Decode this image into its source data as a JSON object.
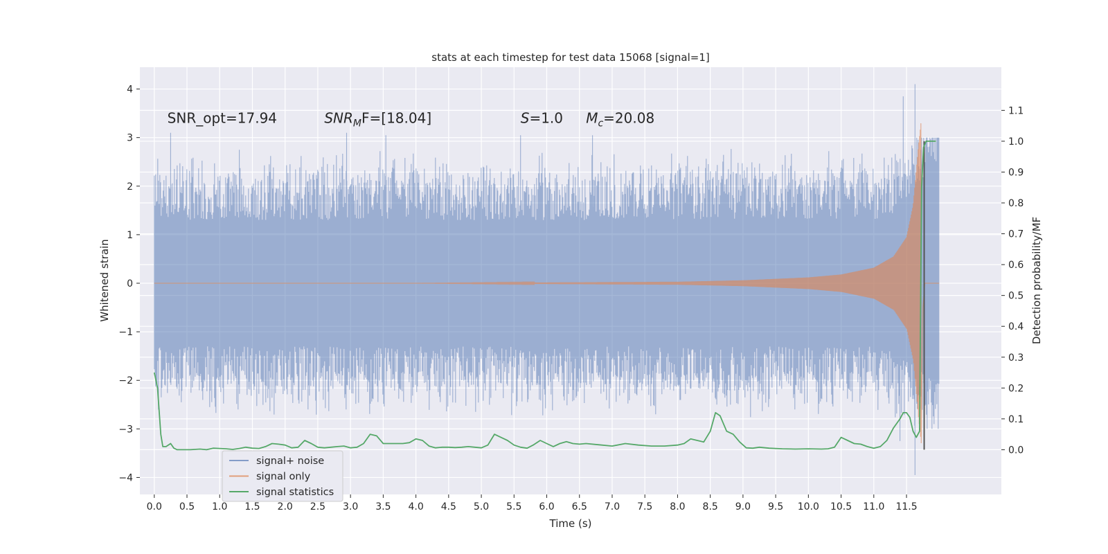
{
  "chart_data": {
    "type": "line",
    "title": "stats at each timestep for test data 15068 [signal=1]",
    "xlabel": "Time (s)",
    "ylabel": "Whitened strain",
    "y2label": "Detection probability/MF",
    "xlim": [
      -0.22,
      12.95
    ],
    "ylim": [
      -4.35,
      4.45
    ],
    "y2lim": [
      -0.145,
      1.24
    ],
    "xticks": [
      0.0,
      0.5,
      1.0,
      1.5,
      2.0,
      2.5,
      3.0,
      3.5,
      4.0,
      4.5,
      5.0,
      5.5,
      6.0,
      6.5,
      7.0,
      7.5,
      8.0,
      8.5,
      9.0,
      9.5,
      10.0,
      10.5,
      11.0,
      11.5
    ],
    "xtick_labels": [
      "0.0",
      "0.5",
      "1.0",
      "1.5",
      "2.0",
      "2.5",
      "3.0",
      "3.5",
      "4.0",
      "4.5",
      "5.0",
      "5.5",
      "6.0",
      "6.5",
      "7.0",
      "7.5",
      "8.0",
      "8.5",
      "9.0",
      "9.5",
      "10.0",
      "10.5",
      "11.0",
      "11.5"
    ],
    "yticks": [
      -4,
      -3,
      -2,
      -1,
      0,
      1,
      2,
      3,
      4
    ],
    "ytick_labels": [
      "−4",
      "−3",
      "−2",
      "−1",
      "0",
      "1",
      "2",
      "3",
      "4"
    ],
    "y2ticks": [
      0.0,
      0.1,
      0.2,
      0.3,
      0.4,
      0.5,
      0.6,
      0.7,
      0.8,
      0.9,
      1.0,
      1.1
    ],
    "y2tick_labels": [
      "0.0",
      "0.1",
      "0.2",
      "0.3",
      "0.4",
      "0.5",
      "0.6",
      "0.7",
      "0.8",
      "0.9",
      "1.0",
      "1.1"
    ],
    "grid": true,
    "legend_position": "lower-left",
    "annotations": [
      {
        "type": "plain",
        "text": "SNR_opt=17.94",
        "x": 0.2,
        "y": 3.3
      },
      {
        "type": "math",
        "pre": "SNR",
        "sub": "M",
        "post": "F=[18.04]",
        "x": 2.6,
        "y": 3.3
      },
      {
        "type": "math",
        "pre": "S",
        "sub": "",
        "post": "=1.0",
        "x": 5.6,
        "y": 3.3
      },
      {
        "type": "math",
        "pre": "M",
        "sub": "c",
        "post": "=20.08",
        "x": 6.6,
        "y": 3.3
      }
    ],
    "series": [
      {
        "name": "signal+ noise",
        "color": "#4c72b0",
        "opacity": 0.5,
        "kind": "noise_bars",
        "x_range": [
          0.0,
          12.0
        ],
        "sample_rate_hz": 2048,
        "envelope_core": 1.3,
        "typical_peak": [
          1.8,
          2.7
        ],
        "highlighted_peaks": [
          {
            "t": 0.25,
            "v": 3.1
          },
          {
            "t": 1.3,
            "v": 2.75
          },
          {
            "t": 2.94,
            "v": 3.1
          },
          {
            "t": 3.54,
            "v": 3.05
          },
          {
            "t": 5.6,
            "v": 3.05
          },
          {
            "t": 6.7,
            "v": 3.05
          },
          {
            "t": 8.6,
            "v": -2.5
          },
          {
            "t": 11.45,
            "v": 3.85
          },
          {
            "t": 11.63,
            "v": 4.1
          },
          {
            "t": 11.63,
            "v": -3.95
          },
          {
            "t": 11.4,
            "v": -3.25
          }
        ]
      },
      {
        "name": "signal only",
        "color": "#dd8452",
        "opacity": 0.6,
        "kind": "chirp",
        "x_range": [
          0.0,
          12.0
        ],
        "merger_time": 11.72,
        "peak_amplitude": 3.3,
        "envelope": [
          [
            8.0,
            0.03
          ],
          [
            9.0,
            0.06
          ],
          [
            10.0,
            0.12
          ],
          [
            10.5,
            0.18
          ],
          [
            11.0,
            0.32
          ],
          [
            11.3,
            0.55
          ],
          [
            11.5,
            0.95
          ],
          [
            11.6,
            1.6
          ],
          [
            11.68,
            2.8
          ],
          [
            11.72,
            3.3
          ]
        ]
      },
      {
        "name": "signal statistics",
        "color": "#55a868",
        "axis": "right",
        "kind": "line",
        "x": [
          0.0,
          0.05,
          0.1,
          0.13,
          0.18,
          0.25,
          0.3,
          0.35,
          0.45,
          0.55,
          0.7,
          0.8,
          0.9,
          1.0,
          1.1,
          1.2,
          1.3,
          1.4,
          1.5,
          1.6,
          1.7,
          1.8,
          1.9,
          2.0,
          2.1,
          2.2,
          2.3,
          2.4,
          2.5,
          2.6,
          2.7,
          2.8,
          2.9,
          3.0,
          3.1,
          3.2,
          3.3,
          3.4,
          3.5,
          3.6,
          3.7,
          3.8,
          3.9,
          4.0,
          4.1,
          4.2,
          4.3,
          4.4,
          4.5,
          4.6,
          4.7,
          4.8,
          4.9,
          5.0,
          5.1,
          5.2,
          5.3,
          5.4,
          5.5,
          5.6,
          5.7,
          5.8,
          5.9,
          6.0,
          6.1,
          6.2,
          6.3,
          6.4,
          6.5,
          6.6,
          6.8,
          7.0,
          7.2,
          7.4,
          7.6,
          7.8,
          8.0,
          8.1,
          8.2,
          8.3,
          8.4,
          8.5,
          8.58,
          8.65,
          8.75,
          8.85,
          8.95,
          9.05,
          9.15,
          9.25,
          9.4,
          9.6,
          9.8,
          10.0,
          10.2,
          10.3,
          10.4,
          10.5,
          10.6,
          10.7,
          10.8,
          10.9,
          11.0,
          11.1,
          11.2,
          11.3,
          11.4,
          11.45,
          11.5,
          11.55,
          11.6,
          11.65,
          11.7,
          11.73,
          11.76,
          11.8,
          11.85,
          11.95
        ],
        "values": [
          0.25,
          0.2,
          0.05,
          0.01,
          0.01,
          0.02,
          0.005,
          0.0,
          0.0,
          0.0,
          0.002,
          0.0,
          0.005,
          0.004,
          0.003,
          0.001,
          0.004,
          0.008,
          0.005,
          0.004,
          0.01,
          0.02,
          0.018,
          0.015,
          0.006,
          0.008,
          0.03,
          0.02,
          0.008,
          0.006,
          0.008,
          0.01,
          0.012,
          0.006,
          0.008,
          0.02,
          0.05,
          0.045,
          0.02,
          0.02,
          0.02,
          0.02,
          0.023,
          0.035,
          0.03,
          0.012,
          0.006,
          0.008,
          0.008,
          0.007,
          0.008,
          0.01,
          0.008,
          0.006,
          0.015,
          0.05,
          0.04,
          0.03,
          0.015,
          0.008,
          0.005,
          0.016,
          0.03,
          0.02,
          0.01,
          0.02,
          0.026,
          0.02,
          0.018,
          0.02,
          0.016,
          0.012,
          0.02,
          0.015,
          0.012,
          0.012,
          0.015,
          0.02,
          0.035,
          0.03,
          0.025,
          0.06,
          0.12,
          0.11,
          0.06,
          0.05,
          0.025,
          0.006,
          0.005,
          0.008,
          0.005,
          0.003,
          0.002,
          0.003,
          0.002,
          0.003,
          0.008,
          0.04,
          0.03,
          0.02,
          0.018,
          0.01,
          0.005,
          0.01,
          0.03,
          0.07,
          0.1,
          0.12,
          0.12,
          0.105,
          0.06,
          0.04,
          0.06,
          0.85,
          0.98,
          1.0,
          1.0,
          1.0
        ]
      }
    ],
    "merger_marker": {
      "x": 11.77,
      "y_from": 0.0,
      "y_to": 1.0,
      "color": "#555555"
    }
  }
}
